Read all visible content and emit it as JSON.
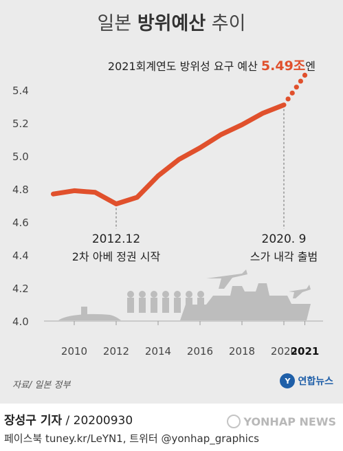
{
  "title_prefix": "일본",
  "title_emphasis": "방위예산",
  "title_suffix": "추이",
  "colors": {
    "line": "#e0502c",
    "callout_value": "#e0502c",
    "panel": "#ebebeb",
    "silhouette": "#bdbdbd"
  },
  "chart_data": {
    "type": "line",
    "x": [
      2009,
      2010,
      2011,
      2012,
      2013,
      2014,
      2015,
      2016,
      2017,
      2018,
      2019,
      2020
    ],
    "values": [
      4.77,
      4.79,
      4.78,
      4.71,
      4.75,
      4.88,
      4.98,
      5.05,
      5.13,
      5.19,
      5.26,
      5.31
    ],
    "request": {
      "x": [
        2020,
        2021
      ],
      "values": [
        5.31,
        5.49
      ],
      "style": "dotted"
    },
    "y_ticks": [
      4.0,
      4.2,
      4.4,
      4.6,
      4.8,
      5.0,
      5.2,
      5.4
    ],
    "x_ticks": [
      "2010",
      "2012",
      "2014",
      "2016",
      "2018",
      "2020",
      "2021"
    ],
    "ylim": [
      4.0,
      5.5
    ],
    "xlim": [
      2008.6,
      2021.2
    ],
    "grid": false,
    "callout": {
      "prefix": "2021회계연도 방위성 요구 예산",
      "value": "5.49",
      "unit_a": "조",
      "unit_b": "엔"
    },
    "annotations": [
      {
        "x": 2012,
        "date": "2012.12",
        "text": "2차 아베 정권 시작"
      },
      {
        "x": 2020,
        "date": "2020. 9",
        "text": "스가 내각 출범"
      }
    ]
  },
  "source": "자료/ 일본 정부",
  "logo_text": "연합뉴스",
  "credit": {
    "reporter": "장성구 기자",
    "date": " / 20200930"
  },
  "social": "페이스북 tuney.kr/LeYN1, 트위터 @yonhap_graphics",
  "watermark": "YONHAP NEWS"
}
